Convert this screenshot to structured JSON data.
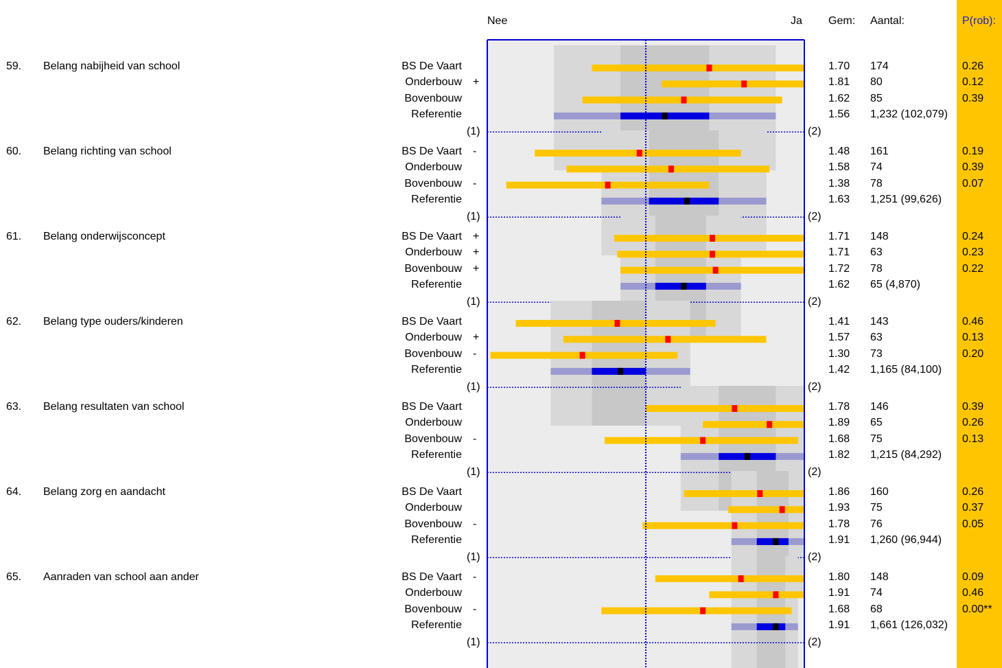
{
  "header": {
    "left": "Nee",
    "right": "Ja",
    "mean": "Gem:",
    "count": "Aantal:",
    "prob": "P(rob):"
  },
  "scale_end_labels": {
    "left": "(1)",
    "right": "(2)"
  },
  "colors": {
    "group_bar": "#ffc600",
    "group_mean": "#ff0000",
    "reference_outer": "#9a9ad0",
    "reference_inner": "#0000e0",
    "reference_mean": "#000000",
    "frame": "#0000cc",
    "prob_column": "#ffc600",
    "band_light": "#d8d8d8",
    "band_dark": "#c8c8c8",
    "background_grey": "#ececec"
  },
  "chart_data": {
    "type": "interval-plot",
    "scale": {
      "min": 1,
      "max": 2,
      "left_label": "Nee",
      "right_label": "Ja",
      "reference_line": 1.5
    },
    "columns": [
      "Gem:",
      "Aantal:",
      "P(rob):"
    ],
    "questions": [
      {
        "num": "59.",
        "label": "Belang nabijheid van school",
        "rows": [
          {
            "name": "BS De Vaart",
            "sign": "",
            "lo": 1.33,
            "hi": 2.0,
            "mean": 1.7,
            "mean_text": "1.70",
            "n": "174",
            "p": "0.26"
          },
          {
            "name": "Onderbouw",
            "sign": "+",
            "lo": 1.55,
            "hi": 2.0,
            "mean": 1.81,
            "mean_text": "1.81",
            "n": "80",
            "p": "0.12"
          },
          {
            "name": "Bovenbouw",
            "sign": "",
            "lo": 1.3,
            "hi": 1.93,
            "mean": 1.62,
            "mean_text": "1.62",
            "n": "85",
            "p": "0.39"
          },
          {
            "name": "Referentie",
            "sign": "",
            "lo": 1.21,
            "hi": 1.91,
            "inner_lo": 1.42,
            "inner_hi": 1.7,
            "mean": 1.56,
            "mean_text": "1.56",
            "n": "1,232 (102,079)",
            "p": ""
          }
        ]
      },
      {
        "num": "60.",
        "label": "Belang richting van school",
        "rows": [
          {
            "name": "BS De Vaart",
            "sign": "-",
            "lo": 1.15,
            "hi": 1.8,
            "mean": 1.48,
            "mean_text": "1.48",
            "n": "161",
            "p": "0.19"
          },
          {
            "name": "Onderbouw",
            "sign": "",
            "lo": 1.25,
            "hi": 1.89,
            "mean": 1.58,
            "mean_text": "1.58",
            "n": "74",
            "p": "0.39"
          },
          {
            "name": "Bovenbouw",
            "sign": "-",
            "lo": 1.06,
            "hi": 1.7,
            "mean": 1.38,
            "mean_text": "1.38",
            "n": "78",
            "p": "0.07"
          },
          {
            "name": "Referentie",
            "sign": "",
            "lo": 1.36,
            "hi": 1.88,
            "inner_lo": 1.51,
            "inner_hi": 1.73,
            "mean": 1.63,
            "mean_text": "1.63",
            "n": "1,251 (99,626)",
            "p": ""
          }
        ]
      },
      {
        "num": "61.",
        "label": "Belang onderwijsconcept",
        "rows": [
          {
            "name": "BS De Vaart",
            "sign": "+",
            "lo": 1.4,
            "hi": 2.0,
            "mean": 1.71,
            "mean_text": "1.71",
            "n": "148",
            "p": "0.24"
          },
          {
            "name": "Onderbouw",
            "sign": "+",
            "lo": 1.41,
            "hi": 2.0,
            "mean": 1.71,
            "mean_text": "1.71",
            "n": "63",
            "p": "0.23"
          },
          {
            "name": "Bovenbouw",
            "sign": "+",
            "lo": 1.42,
            "hi": 2.0,
            "mean": 1.72,
            "mean_text": "1.72",
            "n": "78",
            "p": "0.22"
          },
          {
            "name": "Referentie",
            "sign": "",
            "lo": 1.42,
            "hi": 1.8,
            "inner_lo": 1.53,
            "inner_hi": 1.69,
            "mean": 1.62,
            "mean_text": "1.62",
            "n": "65 (4,870)",
            "p": ""
          }
        ]
      },
      {
        "num": "62.",
        "label": "Belang type ouders/kinderen",
        "rows": [
          {
            "name": "BS De Vaart",
            "sign": "",
            "lo": 1.09,
            "hi": 1.72,
            "mean": 1.41,
            "mean_text": "1.41",
            "n": "143",
            "p": "0.46"
          },
          {
            "name": "Onderbouw",
            "sign": "+",
            "lo": 1.24,
            "hi": 1.88,
            "mean": 1.57,
            "mean_text": "1.57",
            "n": "63",
            "p": "0.13"
          },
          {
            "name": "Bovenbouw",
            "sign": "-",
            "lo": 1.01,
            "hi": 1.6,
            "mean": 1.3,
            "mean_text": "1.30",
            "n": "73",
            "p": "0.20"
          },
          {
            "name": "Referentie",
            "sign": "",
            "lo": 1.2,
            "hi": 1.64,
            "inner_lo": 1.33,
            "inner_hi": 1.5,
            "mean": 1.42,
            "mean_text": "1.42",
            "n": "1,165 (84,100)",
            "p": ""
          }
        ]
      },
      {
        "num": "63.",
        "label": "Belang resultaten van school",
        "rows": [
          {
            "name": "BS De Vaart",
            "sign": "",
            "lo": 1.5,
            "hi": 2.0,
            "mean": 1.78,
            "mean_text": "1.78",
            "n": "146",
            "p": "0.39"
          },
          {
            "name": "Onderbouw",
            "sign": "",
            "lo": 1.68,
            "hi": 2.0,
            "mean": 1.89,
            "mean_text": "1.89",
            "n": "65",
            "p": "0.26"
          },
          {
            "name": "Bovenbouw",
            "sign": "-",
            "lo": 1.37,
            "hi": 1.98,
            "mean": 1.68,
            "mean_text": "1.68",
            "n": "75",
            "p": "0.13"
          },
          {
            "name": "Referentie",
            "sign": "",
            "lo": 1.61,
            "hi": 2.0,
            "inner_lo": 1.73,
            "inner_hi": 1.91,
            "mean": 1.82,
            "mean_text": "1.82",
            "n": "1,215 (84,292)",
            "p": ""
          }
        ]
      },
      {
        "num": "64.",
        "label": "Belang zorg en aandacht",
        "rows": [
          {
            "name": "BS De Vaart",
            "sign": "",
            "lo": 1.62,
            "hi": 2.0,
            "mean": 1.86,
            "mean_text": "1.86",
            "n": "160",
            "p": "0.26"
          },
          {
            "name": "Onderbouw",
            "sign": "",
            "lo": 1.76,
            "hi": 2.0,
            "mean": 1.93,
            "mean_text": "1.93",
            "n": "75",
            "p": "0.37"
          },
          {
            "name": "Bovenbouw",
            "sign": "-",
            "lo": 1.49,
            "hi": 2.0,
            "mean": 1.78,
            "mean_text": "1.78",
            "n": "76",
            "p": "0.05"
          },
          {
            "name": "Referentie",
            "sign": "",
            "lo": 1.77,
            "hi": 2.0,
            "inner_lo": 1.85,
            "inner_hi": 1.95,
            "mean": 1.91,
            "mean_text": "1.91",
            "n": "1,260 (96,944)",
            "p": ""
          }
        ]
      },
      {
        "num": "65.",
        "label": "Aanraden van school aan ander",
        "rows": [
          {
            "name": "BS De Vaart",
            "sign": "-",
            "lo": 1.53,
            "hi": 2.0,
            "mean": 1.8,
            "mean_text": "1.80",
            "n": "148",
            "p": "0.09"
          },
          {
            "name": "Onderbouw",
            "sign": "",
            "lo": 1.7,
            "hi": 2.0,
            "mean": 1.91,
            "mean_text": "1.91",
            "n": "74",
            "p": "0.46"
          },
          {
            "name": "Bovenbouw",
            "sign": "-",
            "lo": 1.36,
            "hi": 1.96,
            "mean": 1.68,
            "mean_text": "1.68",
            "n": "68",
            "p": "0.00**"
          },
          {
            "name": "Referentie",
            "sign": "",
            "lo": 1.77,
            "hi": 1.98,
            "inner_lo": 1.85,
            "inner_hi": 1.94,
            "mean": 1.91,
            "mean_text": "1.91",
            "n": "1,661 (126,032)",
            "p": ""
          }
        ]
      }
    ]
  }
}
